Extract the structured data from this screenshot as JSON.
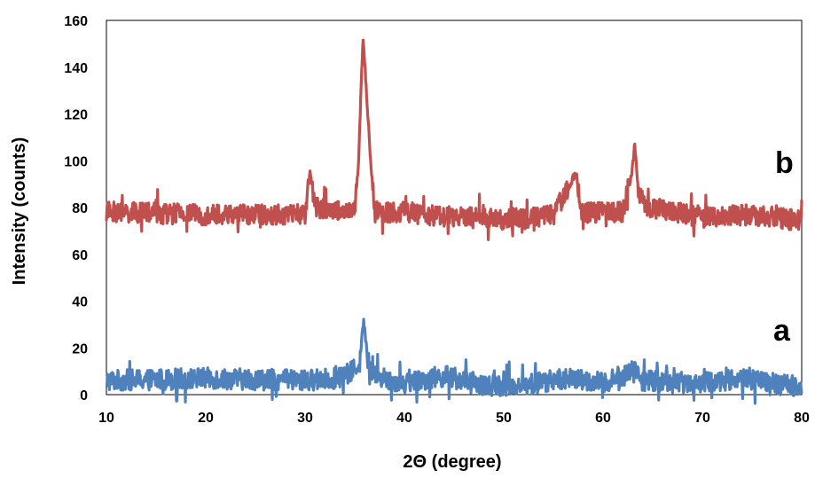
{
  "chart_data": {
    "type": "line",
    "title": "",
    "xlabel": "2Θ (degree)",
    "ylabel": "Intensity (counts)",
    "xlim": [
      10,
      80
    ],
    "ylim": [
      0,
      160
    ],
    "xticks": [
      10,
      20,
      30,
      40,
      50,
      60,
      70,
      80
    ],
    "yticks": [
      0,
      20,
      40,
      60,
      80,
      100,
      120,
      140,
      160
    ],
    "grid": false,
    "legend": "none",
    "series": [
      {
        "name": "a",
        "color": "#4F81BD",
        "baseline": 6,
        "noise": 4.5,
        "points": [
          [
            10,
            6
          ],
          [
            20,
            7
          ],
          [
            30,
            6
          ],
          [
            33,
            7
          ],
          [
            34.5,
            9
          ],
          [
            35.5,
            14
          ],
          [
            35.9,
            32
          ],
          [
            36.3,
            15
          ],
          [
            37,
            8
          ],
          [
            40,
            5
          ],
          [
            44,
            8
          ],
          [
            48,
            4
          ],
          [
            52,
            4
          ],
          [
            56,
            7
          ],
          [
            60,
            5
          ],
          [
            62.5,
            9
          ],
          [
            63,
            12
          ],
          [
            64,
            6
          ],
          [
            70,
            5
          ],
          [
            74,
            7
          ],
          [
            78,
            4
          ],
          [
            80,
            4
          ]
        ]
      },
      {
        "name": "b",
        "color": "#C0504D",
        "baseline": 77,
        "noise": 4.5,
        "points": [
          [
            10,
            78
          ],
          [
            20,
            77
          ],
          [
            30,
            77
          ],
          [
            30.5,
            95
          ],
          [
            31,
            80
          ],
          [
            35,
            78
          ],
          [
            35.4,
            100
          ],
          [
            35.7,
            140
          ],
          [
            35.85,
            152
          ],
          [
            36.1,
            135
          ],
          [
            36.6,
            100
          ],
          [
            37,
            78
          ],
          [
            40,
            78
          ],
          [
            45,
            76
          ],
          [
            50,
            75
          ],
          [
            55,
            77
          ],
          [
            57.3,
            95
          ],
          [
            57.8,
            78
          ],
          [
            62,
            78
          ],
          [
            62.9,
            95
          ],
          [
            63.2,
            108
          ],
          [
            63.5,
            88
          ],
          [
            64.5,
            80
          ],
          [
            70,
            76
          ],
          [
            75,
            77
          ],
          [
            80,
            74
          ]
        ]
      }
    ]
  }
}
